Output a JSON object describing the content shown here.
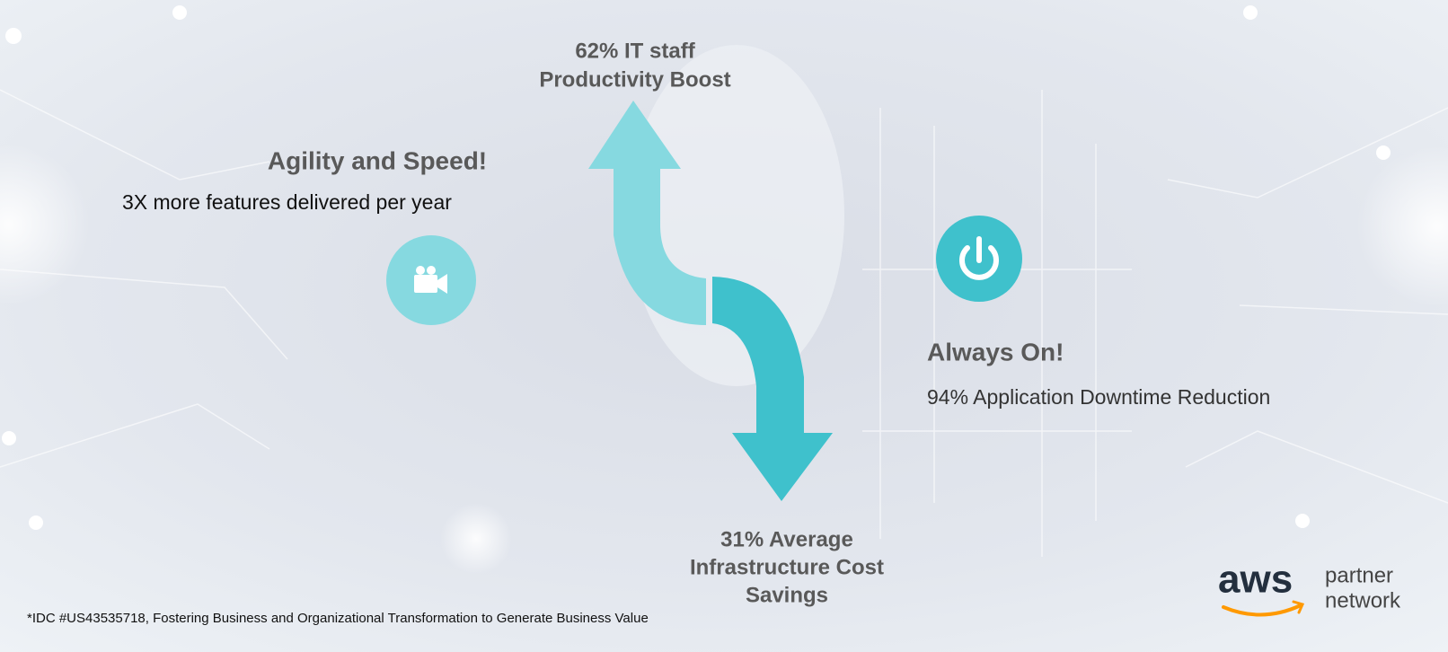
{
  "productivity": {
    "lines": [
      "62% IT staff",
      "Productivity Boost"
    ]
  },
  "agility": {
    "title": "Agility and Speed!",
    "text": "3X more features delivered per year"
  },
  "always_on": {
    "title": "Always On!",
    "text": "94% Application Downtime Reduction"
  },
  "cost": {
    "lines": [
      "31% Average",
      "Infrastructure Cost",
      "Savings"
    ]
  },
  "footnote": "*IDC #US43535718, Fostering Business and Organizational Transformation to Generate Business Value",
  "logo": {
    "brand": "aws",
    "lines": [
      "partner",
      "network"
    ]
  }
}
